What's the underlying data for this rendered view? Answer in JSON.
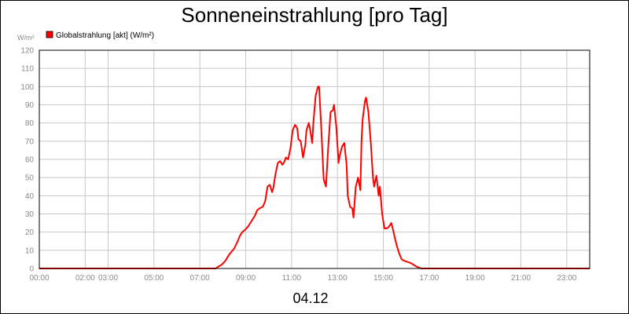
{
  "chart_data": {
    "type": "line",
    "title": "Sonneneinstrahlung [pro Tag]",
    "date_label": "04.12",
    "ylabel": "W/m²",
    "ylim": [
      0,
      120
    ],
    "yticks": [
      0,
      10,
      20,
      30,
      40,
      50,
      60,
      70,
      80,
      90,
      100,
      110,
      120
    ],
    "xlim": [
      0,
      24
    ],
    "xticks": [
      {
        "pos": 0,
        "label": "00:00"
      },
      {
        "pos": 2,
        "label": "02:00"
      },
      {
        "pos": 3,
        "label": "03:00"
      },
      {
        "pos": 5,
        "label": "05:00"
      },
      {
        "pos": 7,
        "label": "07:00"
      },
      {
        "pos": 9,
        "label": "09:00"
      },
      {
        "pos": 11,
        "label": "11:00"
      },
      {
        "pos": 13,
        "label": "13:00"
      },
      {
        "pos": 15,
        "label": "15:00"
      },
      {
        "pos": 17,
        "label": "17:00"
      },
      {
        "pos": 19,
        "label": "19:00"
      },
      {
        "pos": 21,
        "label": "21:00"
      },
      {
        "pos": 23,
        "label": "23:00"
      }
    ],
    "grid": true,
    "legend_position": "top-left",
    "series": [
      {
        "name": "Globalstrahlung [akt] (W/m²)",
        "color": "#ff0000",
        "x": [
          0,
          7.7,
          7.8,
          7.95,
          8.1,
          8.3,
          8.5,
          8.65,
          8.75,
          8.85,
          8.95,
          9.1,
          9.25,
          9.4,
          9.5,
          9.6,
          9.75,
          9.85,
          9.95,
          10.05,
          10.15,
          10.2,
          10.3,
          10.4,
          10.5,
          10.6,
          10.7,
          10.75,
          10.85,
          10.95,
          11.05,
          11.15,
          11.25,
          11.3,
          11.4,
          11.5,
          11.6,
          11.65,
          11.75,
          11.8,
          11.9,
          11.95,
          12.05,
          12.15,
          12.2,
          12.3,
          12.4,
          12.5,
          12.6,
          12.7,
          12.8,
          12.85,
          12.95,
          13.05,
          13.1,
          13.2,
          13.3,
          13.4,
          13.45,
          13.55,
          13.65,
          13.7,
          13.8,
          13.9,
          14.0,
          14.05,
          14.1,
          14.15,
          14.2,
          14.25,
          14.35,
          14.45,
          14.55,
          14.6,
          14.7,
          14.8,
          14.85,
          14.95,
          15.05,
          15.15,
          15.25,
          15.35,
          15.45,
          15.5,
          15.6,
          15.7,
          15.8,
          15.95,
          16.2,
          16.45,
          16.65,
          16.9,
          17.5,
          24
        ],
        "y": [
          0,
          0,
          1,
          2,
          4,
          8,
          11,
          15,
          18,
          20,
          21,
          23,
          26,
          29,
          32,
          33,
          34,
          37,
          45,
          46,
          42,
          44,
          52,
          58,
          59,
          57,
          59,
          61,
          60,
          66,
          76,
          79,
          77,
          71,
          70,
          61,
          68,
          76,
          80,
          77,
          69,
          80,
          95,
          100,
          100,
          76,
          49,
          45,
          67,
          86,
          87,
          90,
          78,
          58,
          62,
          67,
          69,
          57,
          40,
          34,
          33,
          28,
          45,
          50,
          43,
          70,
          82,
          87,
          92,
          94,
          86,
          70,
          50,
          45,
          51,
          40,
          45,
          30,
          22,
          22,
          23,
          25,
          20,
          17,
          12,
          8,
          5,
          4,
          3,
          1,
          0,
          0,
          0,
          0
        ]
      }
    ]
  }
}
